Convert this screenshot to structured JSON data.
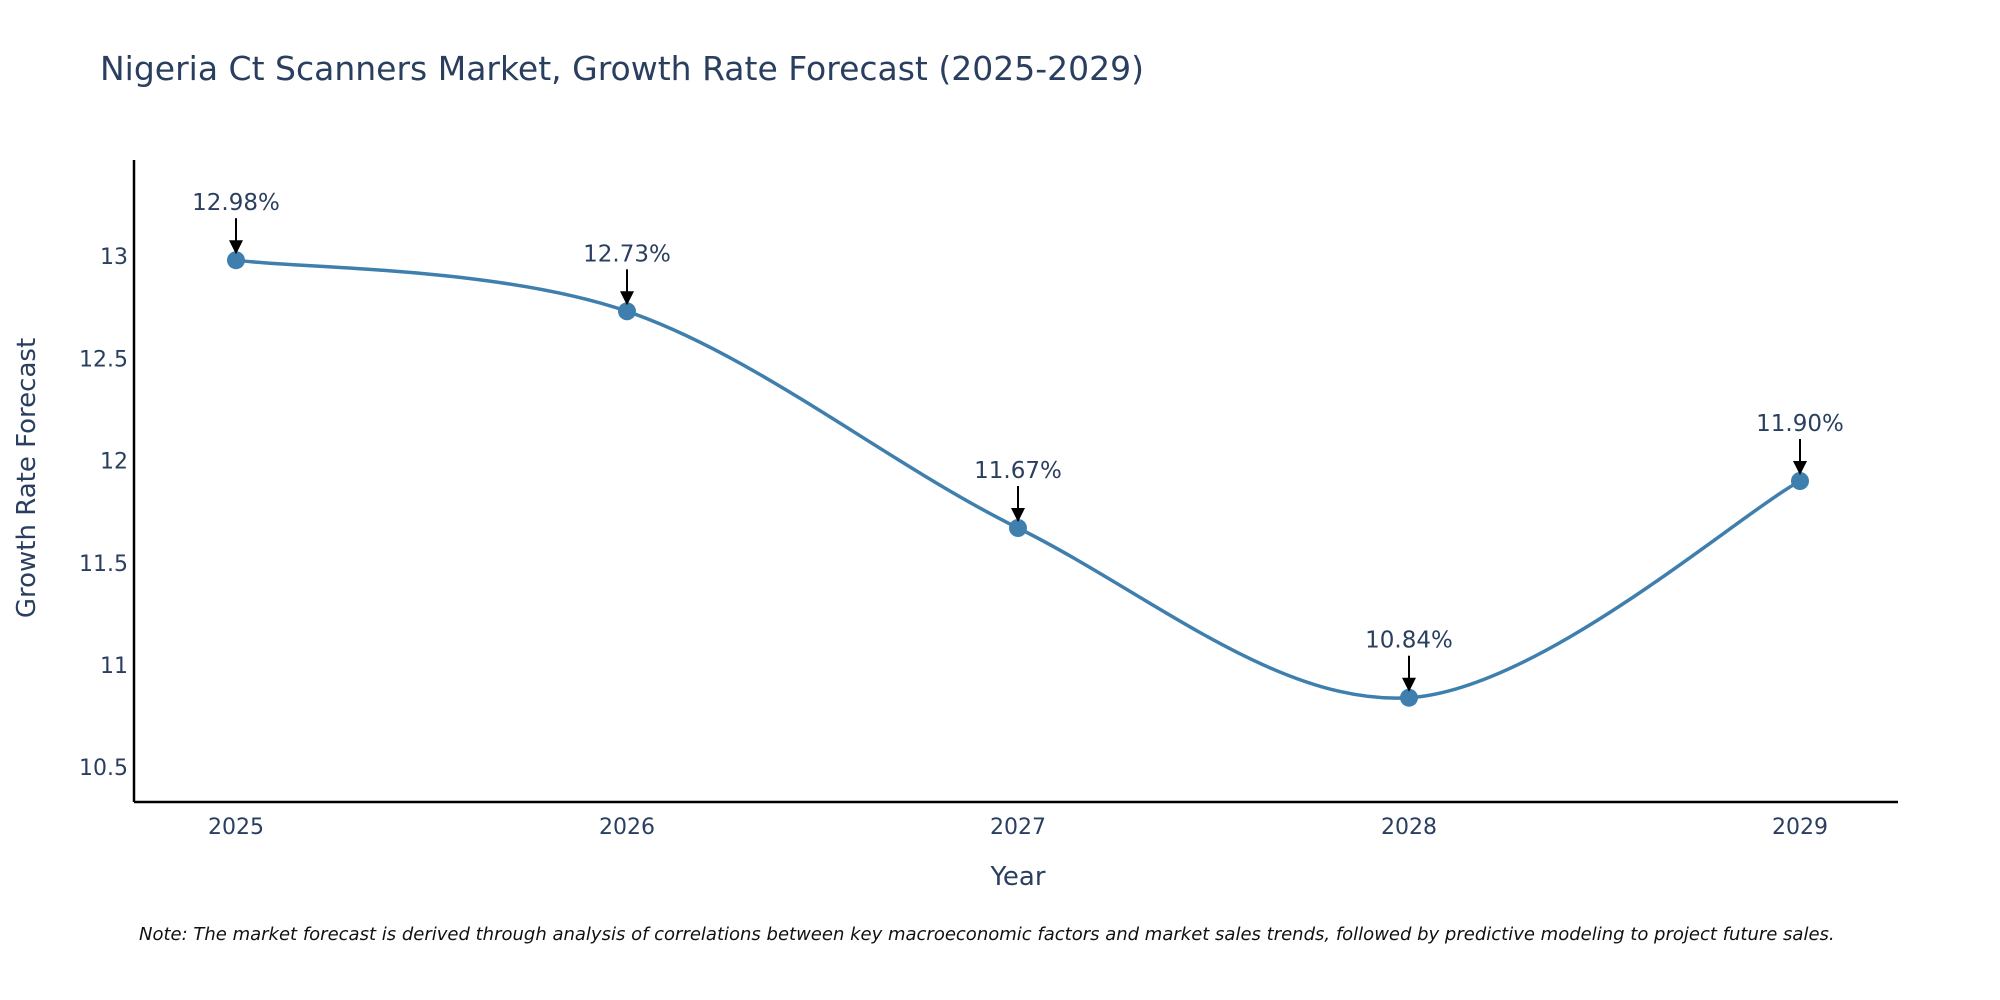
{
  "chart_data": {
    "type": "line",
    "title": "Nigeria Ct Scanners Market, Growth Rate Forecast (2025-2029)",
    "xlabel": "Year",
    "ylabel": "Growth Rate Forecast",
    "categories": [
      "2025",
      "2026",
      "2027",
      "2028",
      "2029"
    ],
    "series": [
      {
        "name": "Growth Rate Forecast",
        "values": [
          12.98,
          12.73,
          11.67,
          10.84,
          11.9
        ]
      }
    ],
    "annotations": [
      "12.98%",
      "12.73%",
      "11.67%",
      "10.84%",
      "11.90%"
    ],
    "yticks": [
      "10.5",
      "11",
      "11.5",
      "12",
      "12.5",
      "13"
    ],
    "yticks_values": [
      10.5,
      11,
      11.5,
      12,
      12.5,
      13
    ],
    "ylim": [
      10.33,
      13.47
    ],
    "grid": false,
    "line_color": "#3f7fae",
    "note": "Note: The market forecast is derived through analysis of correlations between key macroeconomic factors and market sales trends, followed by predictive modeling to project future sales."
  }
}
